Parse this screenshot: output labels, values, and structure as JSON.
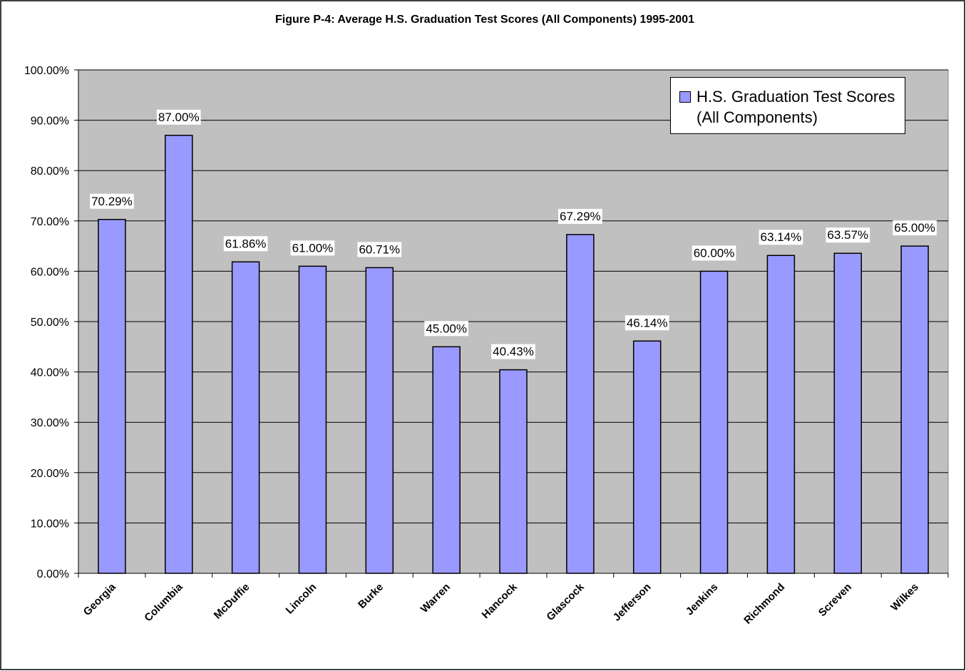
{
  "chart_data": {
    "type": "bar",
    "title": "Figure P-4: Average H.S. Graduation Test Scores (All Components) 1995-2001",
    "categories": [
      "Georgia",
      "Columbia",
      "McDuffie",
      "Lincoln",
      "Burke",
      "Warren",
      "Hancock",
      "Glascock",
      "Jefferson",
      "Jenkins",
      "Richmond",
      "Screven",
      "Wilkes"
    ],
    "series": [
      {
        "name": "H.S. Graduation Test Scores (All Components)",
        "color": "#9999ff",
        "values": [
          70.29,
          87.0,
          61.86,
          61.0,
          60.71,
          45.0,
          40.43,
          67.29,
          46.14,
          60.0,
          63.14,
          63.57,
          65.0
        ],
        "value_labels": [
          "70.29%",
          "87.00%",
          "61.86%",
          "61.00%",
          "60.71%",
          "45.00%",
          "40.43%",
          "67.29%",
          "46.14%",
          "60.00%",
          "63.14%",
          "63.57%",
          "65.00%"
        ]
      }
    ],
    "ylim": [
      0,
      100
    ],
    "yticks": [
      {
        "value": 0,
        "label": "0.00%"
      },
      {
        "value": 10,
        "label": "10.00%"
      },
      {
        "value": 20,
        "label": "20.00%"
      },
      {
        "value": 30,
        "label": "30.00%"
      },
      {
        "value": 40,
        "label": "40.00%"
      },
      {
        "value": 50,
        "label": "50.00%"
      },
      {
        "value": 60,
        "label": "60.00%"
      },
      {
        "value": 70,
        "label": "70.00%"
      },
      {
        "value": 80,
        "label": "80.00%"
      },
      {
        "value": 90,
        "label": "90.00%"
      },
      {
        "value": 100,
        "label": "100.00%"
      }
    ],
    "grid": true,
    "legend": "upper right"
  }
}
